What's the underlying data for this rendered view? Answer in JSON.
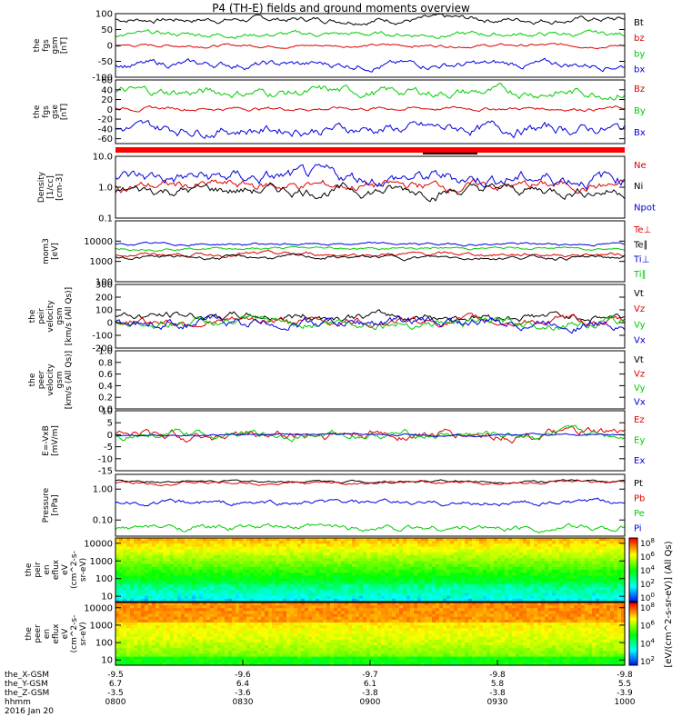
{
  "title": "P4 (TH-E) fields and ground moments overview",
  "colors": {
    "black": "#000000",
    "red": "#dd0000",
    "green": "#00cc00",
    "blue": "#0000dd",
    "flag_red": "#ff0000"
  },
  "chart_data": [
    {
      "id": "fgs_gsm",
      "type": "line",
      "ylabel": [
        "the",
        "fgs",
        "gsm",
        "[nT]"
      ],
      "ylim": [
        -100,
        100
      ],
      "yticks": [
        100,
        50,
        0,
        -50,
        -100
      ],
      "series": [
        {
          "name": "Bt",
          "color": "black",
          "base": 82,
          "amp": 12
        },
        {
          "name": "bz",
          "color": "red",
          "base": 0,
          "amp": 6
        },
        {
          "name": "by",
          "color": "green",
          "base": 35,
          "amp": 10
        },
        {
          "name": "bx",
          "color": "blue",
          "base": -60,
          "amp": 14
        }
      ]
    },
    {
      "id": "fgs_gse",
      "type": "line",
      "ylabel": [
        "the",
        "fgs",
        "gse",
        "[nT]"
      ],
      "ylim": [
        -70,
        60
      ],
      "yticks": [
        60,
        40,
        20,
        0,
        -20,
        -40,
        -60
      ],
      "series": [
        {
          "name": "Bz",
          "color": "red",
          "base": 2,
          "amp": 5
        },
        {
          "name": "By",
          "color": "green",
          "base": 35,
          "amp": 12
        },
        {
          "name": "Bx",
          "color": "blue",
          "base": -40,
          "amp": 14
        }
      ]
    },
    {
      "id": "density",
      "type": "line",
      "scale": "log",
      "ylabel": [
        "Density",
        "[1/cc]",
        "[cm-3]"
      ],
      "ylim": [
        0.1,
        10
      ],
      "yticks": [
        "10.0",
        "1.0",
        "0.1"
      ],
      "series": [
        {
          "name": "Ne",
          "color": "red",
          "base": 0.05,
          "amp": 0.2
        },
        {
          "name": "Ni",
          "color": "black",
          "base": -0.1,
          "amp": 0.22
        },
        {
          "name": "Npot",
          "color": "blue",
          "base": 0.3,
          "amp": 0.28
        }
      ]
    },
    {
      "id": "temperature",
      "type": "line",
      "scale": "log",
      "ylabel": [
        "mom3",
        "[eV]"
      ],
      "ylim": [
        100,
        100000
      ],
      "yticks": [
        "10000",
        "1000",
        "100"
      ],
      "series": [
        {
          "name": "Te⊥",
          "color": "red",
          "base": 3.35,
          "amp": 0.12
        },
        {
          "name": "Te∥",
          "color": "black",
          "base": 3.2,
          "amp": 0.12
        },
        {
          "name": "Ti⊥",
          "color": "blue",
          "base": 3.85,
          "amp": 0.08
        },
        {
          "name": "Ti∥",
          "color": "green",
          "base": 3.65,
          "amp": 0.08
        }
      ]
    },
    {
      "id": "peir_velocity",
      "type": "line",
      "ylabel": [
        "the",
        "peir",
        "velocity",
        "gsm",
        "[km/s (All Qs)]"
      ],
      "ylim": [
        -200,
        300
      ],
      "yticks": [
        300,
        200,
        100,
        0,
        -100,
        -200
      ],
      "series": [
        {
          "name": "Vt",
          "color": "black",
          "base": 50,
          "amp": 40
        },
        {
          "name": "Vz",
          "color": "red",
          "base": 10,
          "amp": 40
        },
        {
          "name": "Vy",
          "color": "green",
          "base": 0,
          "amp": 45
        },
        {
          "name": "Vx",
          "color": "blue",
          "base": 0,
          "amp": 50
        }
      ]
    },
    {
      "id": "peer_velocity",
      "type": "line",
      "ylabel": [
        "the",
        "peer",
        "velocity",
        "gsm",
        "[km/s (All Qs)]"
      ],
      "ylim": [
        0,
        1
      ],
      "yticks": [
        "1.0",
        "0.8",
        "0.6",
        "0.4",
        "0.2",
        "0.0"
      ],
      "series": [
        {
          "name": "Vt",
          "color": "black"
        },
        {
          "name": "Vz",
          "color": "red"
        },
        {
          "name": "Vy",
          "color": "green"
        },
        {
          "name": "Vx",
          "color": "blue"
        }
      ]
    },
    {
      "id": "efield",
      "type": "line",
      "ylabel": [
        "E=-VxB",
        "[mV/m]"
      ],
      "ylim": [
        -15,
        10
      ],
      "yticks": [
        10,
        5,
        0,
        -5,
        -10,
        -15
      ],
      "series": [
        {
          "name": "Ez",
          "color": "red",
          "base": 0,
          "amp": 2.5
        },
        {
          "name": "Ey",
          "color": "green",
          "base": 0,
          "amp": 2
        },
        {
          "name": "Ex",
          "color": "blue",
          "base": 0,
          "amp": 0.5
        }
      ]
    },
    {
      "id": "pressure",
      "type": "line",
      "scale": "log",
      "ylabel": [
        "Pressure",
        "[nPa]"
      ],
      "ylim": [
        0.03,
        3
      ],
      "yticks": [
        "1.00",
        "0.10"
      ],
      "series": [
        {
          "name": "Pt",
          "color": "black",
          "base": 0.25,
          "amp": 0.05
        },
        {
          "name": "Pb",
          "color": "red",
          "base": 0.2,
          "amp": 0.06
        },
        {
          "name": "Pe",
          "color": "green",
          "base": -1.25,
          "amp": 0.12
        },
        {
          "name": "Pi",
          "color": "blue",
          "base": -0.45,
          "amp": 0.1
        }
      ]
    },
    {
      "id": "peir_spectrogram",
      "type": "heatmap",
      "scale": "log",
      "ylabel": [
        "the",
        "peir",
        "en",
        "eflux",
        "eV",
        "(cm^2-s-",
        "sr-eV)"
      ],
      "ylim": [
        5,
        20000
      ],
      "yticks": [
        "10000",
        "1000",
        "100",
        "10"
      ]
    },
    {
      "id": "peer_spectrogram",
      "type": "heatmap",
      "scale": "log",
      "ylabel": [
        "the",
        "peer",
        "en",
        "eflux",
        "eV",
        "(cm^2-s-",
        "sr-eV)"
      ],
      "ylim": [
        5,
        20000
      ],
      "yticks": [
        "10000",
        "1000",
        "100",
        "10"
      ]
    }
  ],
  "colorbar": {
    "label": "[eV/(cm^2-s-sr-eV)] (All Qs)",
    "ticks": [
      "10^8",
      "10^6",
      "10^4",
      "10^2",
      "10^0"
    ],
    "ticks2": [
      "10^8",
      "10^6",
      "10^4",
      "10^2"
    ]
  },
  "xaxis": {
    "rows": [
      {
        "label": "the_X-GSM",
        "values": [
          "-9.5",
          "-9.6",
          "-9.7",
          "-9.8",
          "-9.8"
        ]
      },
      {
        "label": "the_Y-GSM",
        "values": [
          "6.7",
          "6.4",
          "6.1",
          "5.8",
          "5.5"
        ]
      },
      {
        "label": "the_Z-GSM",
        "values": [
          "-3.5",
          "-3.6",
          "-3.8",
          "-3.8",
          "-3.9"
        ]
      },
      {
        "label": "hhmm",
        "values": [
          "0800",
          "0830",
          "0900",
          "0930",
          "1000"
        ]
      }
    ],
    "date": "2016 Jan 20"
  }
}
